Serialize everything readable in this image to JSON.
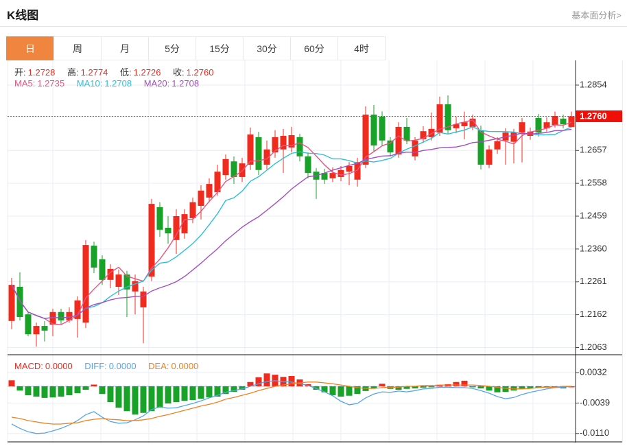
{
  "header": {
    "title": "K线图",
    "link_label": "基本面分析>"
  },
  "tabs": {
    "items": [
      {
        "id": "day",
        "label": "日",
        "active": true
      },
      {
        "id": "week",
        "label": "周",
        "active": false
      },
      {
        "id": "month",
        "label": "月",
        "active": false
      },
      {
        "id": "min5",
        "label": "5分",
        "active": false
      },
      {
        "id": "min15",
        "label": "15分",
        "active": false
      },
      {
        "id": "min30",
        "label": "30分",
        "active": false
      },
      {
        "id": "min60",
        "label": "60分",
        "active": false
      },
      {
        "id": "hour4",
        "label": "4时",
        "active": false
      }
    ]
  },
  "ohlc": {
    "open_label": "开:",
    "open": "1.2728",
    "high_label": "高:",
    "high": "1.2774",
    "low_label": "低:",
    "low": "1.2726",
    "close_label": "收:",
    "close": "1.2760"
  },
  "ma_legend": {
    "ma5_label": "MA5:",
    "ma5": "1.2735",
    "ma10_label": "MA10:",
    "ma10": "1.2708",
    "ma20_label": "MA20:",
    "ma20": "1.2708"
  },
  "macd_legend": {
    "macd_label": "MACD:",
    "macd": "0.0000",
    "diff_label": "DIFF:",
    "diff": "0.0000",
    "dea_label": "DEA:",
    "dea": "0.0000"
  },
  "colors": {
    "up": "#f02b1e",
    "down": "#18a228",
    "accent_tab": "#f0853f",
    "price_tag_bg": "#ee1008",
    "current_price_line": "#f5281e",
    "ma5": "#e8557f",
    "ma10": "#2cc0da",
    "ma20": "#a44fc0",
    "diff_line": "#56a5e8",
    "dea_line": "#f0821e",
    "link": "#999999",
    "axis_text": "#333333",
    "grid": "#e9eef6",
    "zero_line": "#92c0e8"
  },
  "chart_data": {
    "type": "candlestick",
    "title": "K线图 日线 (daily candlestick with MACD)",
    "price_axis": {
      "labels": [
        1.2854,
        1.276,
        1.2657,
        1.2558,
        1.2459,
        1.236,
        1.2261,
        1.2162,
        1.2063
      ],
      "last_price": 1.276
    },
    "candles": [
      [
        1.2143,
        1.2273,
        1.2118,
        1.2252
      ],
      [
        1.2246,
        1.229,
        1.2145,
        1.2155
      ],
      [
        1.2163,
        1.217,
        1.2097,
        1.2103
      ],
      [
        1.2103,
        1.2138,
        1.2066,
        1.2128
      ],
      [
        1.2128,
        1.2143,
        1.2081,
        1.2114
      ],
      [
        1.2132,
        1.218,
        1.2097,
        1.217
      ],
      [
        1.217,
        1.218,
        1.2134,
        1.2145
      ],
      [
        1.2145,
        1.2184,
        1.2138,
        1.217
      ],
      [
        1.2149,
        1.2217,
        1.2093,
        1.2205
      ],
      [
        1.2138,
        1.2387,
        1.2122,
        1.2372
      ],
      [
        1.237,
        1.2382,
        1.2287,
        1.2304
      ],
      [
        1.2329,
        1.2341,
        1.2252,
        1.2267
      ],
      [
        1.2267,
        1.2314,
        1.2242,
        1.23
      ],
      [
        1.2246,
        1.2298,
        1.2221,
        1.2283
      ],
      [
        1.2283,
        1.2294,
        1.2155,
        1.2238
      ],
      [
        1.2232,
        1.2283,
        1.2163,
        1.2263
      ],
      [
        1.2184,
        1.2246,
        1.2076,
        1.2232
      ],
      [
        1.2277,
        1.2511,
        1.2263,
        1.2496
      ],
      [
        1.2486,
        1.2501,
        1.2397,
        1.2418
      ],
      [
        1.2424,
        1.2459,
        1.2376,
        1.2407
      ],
      [
        1.2387,
        1.248,
        1.2345,
        1.2459
      ],
      [
        1.2407,
        1.248,
        1.2391,
        1.2465
      ],
      [
        1.2453,
        1.2515,
        1.2438,
        1.2501
      ],
      [
        1.249,
        1.2552,
        1.2449,
        1.2536
      ],
      [
        1.2515,
        1.2573,
        1.2501,
        1.2556
      ],
      [
        1.2531,
        1.2614,
        1.2521,
        1.2593
      ],
      [
        1.2583,
        1.2645,
        1.2569,
        1.2631
      ],
      [
        1.2624,
        1.2639,
        1.2556,
        1.2577
      ],
      [
        1.2577,
        1.2635,
        1.2562,
        1.2618
      ],
      [
        1.2614,
        1.2726,
        1.2598,
        1.2705
      ],
      [
        1.2697,
        1.2713,
        1.2583,
        1.2598
      ],
      [
        1.2614,
        1.2687,
        1.26,
        1.266
      ],
      [
        1.2651,
        1.2718,
        1.2635,
        1.2697
      ],
      [
        1.266,
        1.2722,
        1.2589,
        1.2701
      ],
      [
        1.2666,
        1.2728,
        1.2651,
        1.2703
      ],
      [
        1.2697,
        1.2707,
        1.2624,
        1.2639
      ],
      [
        1.2639,
        1.2651,
        1.2573,
        1.2589
      ],
      [
        1.2593,
        1.2604,
        1.2511,
        1.2569
      ],
      [
        1.2589,
        1.2602,
        1.2556,
        1.2569
      ],
      [
        1.2573,
        1.2606,
        1.2562,
        1.2589
      ],
      [
        1.2577,
        1.261,
        1.2564,
        1.2598
      ],
      [
        1.2593,
        1.2622,
        1.2552,
        1.261
      ],
      [
        1.2569,
        1.2635,
        1.2548,
        1.2622
      ],
      [
        1.2614,
        1.279,
        1.2604,
        1.2765
      ],
      [
        1.2765,
        1.2794,
        1.2655,
        1.2672
      ],
      [
        1.2759,
        1.2775,
        1.2672,
        1.2687
      ],
      [
        1.2687,
        1.2697,
        1.2639,
        1.2651
      ],
      [
        1.2645,
        1.2742,
        1.2635,
        1.2728
      ],
      [
        1.2728,
        1.2755,
        1.2676,
        1.2687
      ],
      [
        1.2639,
        1.2697,
        1.2627,
        1.2687
      ],
      [
        1.2691,
        1.273,
        1.268,
        1.2715
      ],
      [
        1.2697,
        1.2771,
        1.2687,
        1.2722
      ],
      [
        1.2711,
        1.2819,
        1.2701,
        1.2796
      ],
      [
        1.2796,
        1.2823,
        1.2705,
        1.2718
      ],
      [
        1.2724,
        1.2759,
        1.2709,
        1.2736
      ],
      [
        1.273,
        1.2774,
        1.2691,
        1.2742
      ],
      [
        1.2728,
        1.2765,
        1.2718,
        1.2753
      ],
      [
        1.2718,
        1.2732,
        1.26,
        1.2614
      ],
      [
        1.2614,
        1.2672,
        1.2604,
        1.266
      ],
      [
        1.266,
        1.2697,
        1.2647,
        1.2685
      ],
      [
        1.2687,
        1.2724,
        1.2614,
        1.2711
      ],
      [
        1.2683,
        1.2722,
        1.2618,
        1.2711
      ],
      [
        1.2711,
        1.2755,
        1.2621,
        1.2742
      ],
      [
        1.2701,
        1.2726,
        1.2689,
        1.2714
      ],
      [
        1.2755,
        1.2767,
        1.2699,
        1.2711
      ],
      [
        1.2724,
        1.2757,
        1.2714,
        1.2742
      ],
      [
        1.2734,
        1.2774,
        1.2726,
        1.2761
      ],
      [
        1.2753,
        1.2765,
        1.2724,
        1.2736
      ],
      [
        1.2728,
        1.2774,
        1.2726,
        1.276
      ]
    ],
    "macd": {
      "axis_labels": [
        0.0032,
        -0.0039,
        -0.011
      ],
      "hist": [
        0.0014,
        -0.001,
        -0.0021,
        -0.0024,
        -0.0027,
        -0.0026,
        -0.0024,
        -0.0021,
        -0.0016,
        -0.0008,
        0.0004,
        -0.0018,
        -0.0037,
        -0.005,
        -0.0058,
        -0.0066,
        -0.0062,
        -0.0058,
        -0.005,
        -0.004,
        -0.0037,
        -0.0034,
        -0.0032,
        -0.0029,
        -0.0026,
        -0.0024,
        -0.0018,
        -0.0013,
        -0.0008,
        0.001,
        0.0021,
        0.003,
        0.0027,
        0.0022,
        0.0024,
        0.0016,
        0.0005,
        -0.0008,
        -0.0014,
        -0.0021,
        -0.0024,
        -0.0022,
        -0.0018,
        -0.0011,
        -0.0005,
        0.0006,
        -0.0006,
        -0.0008,
        -0.0006,
        -0.0005,
        -0.0003,
        -0.0002,
        0.0002,
        0.0005,
        0.001,
        0.0013,
        -0.0002,
        -0.0005,
        -0.001,
        -0.0014,
        -0.0013,
        -0.001,
        -0.0006,
        -0.0005,
        -0.0004,
        -0.0003,
        -0.0002,
        -0.0005,
        0.0
      ],
      "diff": [
        -0.0088,
        -0.0098,
        -0.0106,
        -0.011,
        -0.0109,
        -0.0104,
        -0.0098,
        -0.009,
        -0.008,
        -0.0066,
        -0.0059,
        -0.0072,
        -0.0082,
        -0.0086,
        -0.0085,
        -0.0078,
        -0.0069,
        -0.0054,
        -0.0048,
        -0.0051,
        -0.005,
        -0.0045,
        -0.004,
        -0.0034,
        -0.0027,
        -0.0021,
        -0.0014,
        -0.001,
        -0.0006,
        0.0,
        0.0006,
        0.0011,
        0.0013,
        0.0011,
        0.001,
        0.0006,
        0.0002,
        -0.0005,
        -0.0013,
        -0.0022,
        -0.0035,
        -0.0043,
        -0.004,
        -0.0027,
        -0.0018,
        -0.0013,
        -0.0014,
        -0.0011,
        -0.0013,
        -0.001,
        -0.0006,
        -0.0005,
        -0.0002,
        -0.0002,
        -0.0003,
        -0.0003,
        -0.0005,
        -0.001,
        -0.0016,
        -0.0024,
        -0.0029,
        -0.0026,
        -0.0019,
        -0.0014,
        -0.001,
        -0.0006,
        -0.0003,
        -0.0002,
        0.0
      ],
      "dea": [
        -0.0072,
        -0.0075,
        -0.008,
        -0.0083,
        -0.0086,
        -0.0088,
        -0.0088,
        -0.0086,
        -0.0085,
        -0.008,
        -0.0077,
        -0.0075,
        -0.0077,
        -0.0078,
        -0.008,
        -0.008,
        -0.0078,
        -0.0075,
        -0.007,
        -0.0066,
        -0.0061,
        -0.0056,
        -0.0051,
        -0.0046,
        -0.0042,
        -0.0037,
        -0.003,
        -0.0026,
        -0.0021,
        -0.0016,
        -0.001,
        -0.0005,
        0.0,
        0.0003,
        0.0006,
        0.0008,
        0.001,
        0.001,
        0.0008,
        0.0006,
        0.0003,
        0.0,
        -0.0003,
        -0.0005,
        -0.0005,
        -0.0003,
        -0.0002,
        -0.0002,
        0.0,
        0.0,
        0.0002,
        0.0002,
        0.0003,
        0.0003,
        0.0003,
        0.0003,
        0.0003,
        0.0002,
        0.0,
        -0.0002,
        -0.0005,
        -0.0006,
        -0.0006,
        -0.0005,
        -0.0003,
        -0.0002,
        -0.0002,
        0.0,
        0.0
      ]
    }
  }
}
